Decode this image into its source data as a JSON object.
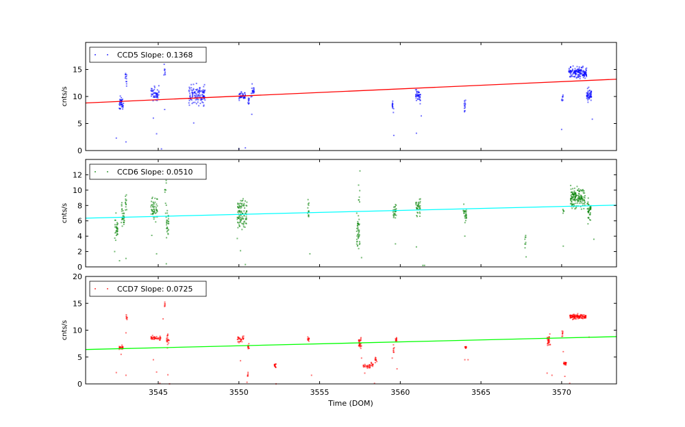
{
  "chart_data": [
    {
      "type": "scatter",
      "legend": "CCD5 Slope: 0.1368",
      "legend_placement": "top-left",
      "ylabel": "cnts/s",
      "xlabel": "",
      "xlim": [
        3540.5,
        3573.4
      ],
      "ylim": [
        0,
        20
      ],
      "yticks": [
        0,
        5,
        10,
        15
      ],
      "xticks": [
        3545,
        3550,
        3555,
        3560,
        3565,
        3570
      ],
      "point_color": "#0000ff",
      "fit_color": "#ff0000",
      "fit_line": {
        "slope": 0.1368,
        "y_at_xmin": 8.8,
        "y_at_xmax": 13.2
      },
      "clusters": [
        [
          3542.7,
          0.15,
          8.7,
          0.6,
          40
        ],
        [
          3543.0,
          0.05,
          13.0,
          0.7,
          12
        ],
        [
          3544.8,
          0.25,
          10.6,
          0.6,
          50
        ],
        [
          3545.4,
          0.05,
          14.5,
          1.0,
          8
        ],
        [
          3547.4,
          0.5,
          10.3,
          0.9,
          120
        ],
        [
          3550.2,
          0.2,
          10.2,
          0.4,
          40
        ],
        [
          3550.6,
          0.05,
          9.0,
          0.5,
          10
        ],
        [
          3550.85,
          0.1,
          11.0,
          0.5,
          20
        ],
        [
          3559.55,
          0.05,
          8.3,
          0.5,
          12
        ],
        [
          3561.1,
          0.15,
          10.2,
          0.6,
          40
        ],
        [
          3564.0,
          0.05,
          8.2,
          0.6,
          14
        ],
        [
          3570.05,
          0.05,
          9.5,
          0.5,
          8
        ],
        [
          3571.0,
          0.55,
          14.4,
          0.5,
          150
        ],
        [
          3571.7,
          0.15,
          10.2,
          0.6,
          50
        ]
      ],
      "outliers": [
        [
          3542.4,
          2.3
        ],
        [
          3543.0,
          1.6
        ],
        [
          3544.7,
          6.0
        ],
        [
          3544.9,
          3.1
        ],
        [
          3545.2,
          0.3
        ],
        [
          3545.4,
          7.6
        ],
        [
          3547.2,
          5.1
        ],
        [
          3550.0,
          0.3
        ],
        [
          3550.4,
          0.5
        ],
        [
          3550.8,
          6.7
        ],
        [
          3559.6,
          2.8
        ],
        [
          3561.0,
          3.2
        ],
        [
          3561.3,
          6.4
        ],
        [
          3570.0,
          3.9
        ],
        [
          3571.9,
          5.8
        ]
      ]
    },
    {
      "type": "scatter",
      "legend": "CCD6 Slope: 0.0510",
      "legend_placement": "top-left",
      "ylabel": "cnts/s",
      "xlabel": "",
      "xlim": [
        3540.5,
        3573.4
      ],
      "ylim": [
        0,
        14
      ],
      "yticks": [
        0,
        2,
        4,
        6,
        8,
        10,
        12
      ],
      "xticks": [
        3545,
        3550,
        3555,
        3560,
        3565,
        3570
      ],
      "point_color": "#008000",
      "fit_color": "#00ffff",
      "fit_line": {
        "slope": 0.051,
        "y_at_xmin": 6.35,
        "y_at_xmax": 8.05
      },
      "clusters": [
        [
          3542.4,
          0.1,
          5.0,
          0.8,
          30
        ],
        [
          3542.8,
          0.1,
          6.8,
          0.8,
          30
        ],
        [
          3543.0,
          0.05,
          8.5,
          0.6,
          12
        ],
        [
          3544.75,
          0.2,
          7.5,
          0.7,
          50
        ],
        [
          3545.45,
          0.05,
          10.5,
          0.6,
          8
        ],
        [
          3545.55,
          0.1,
          5.8,
          1.0,
          30
        ],
        [
          3550.2,
          0.3,
          7.0,
          0.9,
          100
        ],
        [
          3554.3,
          0.05,
          7.4,
          0.6,
          15
        ],
        [
          3557.4,
          0.1,
          4.8,
          1.2,
          40
        ],
        [
          3557.45,
          0.05,
          9.5,
          0.8,
          6
        ],
        [
          3559.65,
          0.1,
          7.1,
          0.6,
          25
        ],
        [
          3561.1,
          0.15,
          7.8,
          0.7,
          35
        ],
        [
          3564.0,
          0.1,
          7.0,
          0.6,
          25
        ],
        [
          3567.75,
          0.03,
          3.3,
          0.6,
          8
        ],
        [
          3570.1,
          0.05,
          7.5,
          0.4,
          5
        ],
        [
          3571.0,
          0.45,
          9.0,
          0.7,
          150
        ],
        [
          3571.7,
          0.12,
          7.2,
          0.6,
          40
        ]
      ],
      "outliers": [
        [
          3542.3,
          2.0
        ],
        [
          3542.6,
          0.8
        ],
        [
          3543.0,
          1.1
        ],
        [
          3544.6,
          4.1
        ],
        [
          3544.9,
          1.7
        ],
        [
          3545.5,
          0.4
        ],
        [
          3549.9,
          3.7
        ],
        [
          3550.1,
          2.1
        ],
        [
          3550.4,
          0.3
        ],
        [
          3554.4,
          1.7
        ],
        [
          3557.6,
          1.2
        ],
        [
          3557.5,
          12.5
        ],
        [
          3559.7,
          3.0
        ],
        [
          3561.0,
          2.6
        ],
        [
          3561.4,
          0.2
        ],
        [
          3561.5,
          0.2
        ],
        [
          3564.0,
          4.0
        ],
        [
          3567.8,
          1.3
        ],
        [
          3570.1,
          2.7
        ],
        [
          3572.0,
          3.6
        ]
      ]
    },
    {
      "type": "scatter",
      "legend": "CCD7 Slope: 0.0725",
      "legend_placement": "top-left",
      "ylabel": "cnts/s",
      "xlabel": "Time (DOM)",
      "xlim": [
        3540.5,
        3573.4
      ],
      "ylim": [
        0,
        20
      ],
      "yticks": [
        0,
        5,
        10,
        15,
        20
      ],
      "xticks": [
        3545,
        3550,
        3555,
        3560,
        3565,
        3570
      ],
      "point_color": "#ff0000",
      "fit_color": "#00ff00",
      "fit_line": {
        "slope": 0.0725,
        "y_at_xmin": 6.4,
        "y_at_xmax": 8.8
      },
      "clusters": [
        [
          3542.7,
          0.12,
          6.8,
          0.15,
          25
        ],
        [
          3543.05,
          0.03,
          12.4,
          0.3,
          8
        ],
        [
          3544.85,
          0.3,
          8.5,
          0.2,
          40
        ],
        [
          3545.6,
          0.08,
          8.2,
          0.6,
          20
        ],
        [
          3545.4,
          0.03,
          14.6,
          0.3,
          6
        ],
        [
          3550.1,
          0.2,
          8.4,
          0.3,
          30
        ],
        [
          3550.6,
          0.05,
          7.0,
          0.2,
          12
        ],
        [
          3550.55,
          0.02,
          1.8,
          0.2,
          6
        ],
        [
          3552.25,
          0.05,
          3.4,
          0.2,
          15
        ],
        [
          3554.3,
          0.05,
          8.4,
          0.2,
          12
        ],
        [
          3557.5,
          0.1,
          7.8,
          0.5,
          30
        ],
        [
          3557.95,
          0.25,
          3.3,
          0.2,
          25
        ],
        [
          3558.25,
          0.06,
          3.6,
          0.2,
          10
        ],
        [
          3558.5,
          0.06,
          4.5,
          0.3,
          12
        ],
        [
          3559.6,
          0.03,
          6.5,
          0.4,
          8
        ],
        [
          3559.75,
          0.05,
          8.2,
          0.2,
          12
        ],
        [
          3564.05,
          0.05,
          6.8,
          0.15,
          12
        ],
        [
          3569.2,
          0.1,
          7.8,
          0.6,
          30
        ],
        [
          3570.05,
          0.03,
          9.3,
          0.3,
          8
        ],
        [
          3570.2,
          0.08,
          3.8,
          0.2,
          20
        ],
        [
          3571.0,
          0.5,
          12.5,
          0.2,
          120
        ]
      ],
      "outliers": [
        [
          3542.4,
          2.1
        ],
        [
          3542.7,
          5.5
        ],
        [
          3543.0,
          1.6
        ],
        [
          3543.0,
          9.5
        ],
        [
          3544.7,
          4.5
        ],
        [
          3544.9,
          2.2
        ],
        [
          3545.1,
          0.1
        ],
        [
          3545.3,
          12.1
        ],
        [
          3545.6,
          1.7
        ],
        [
          3545.7,
          0.0
        ],
        [
          3550.1,
          4.3
        ],
        [
          3550.5,
          0.3
        ],
        [
          3552.3,
          0.0
        ],
        [
          3554.5,
          1.6
        ],
        [
          3557.6,
          4.8
        ],
        [
          3557.8,
          2.0
        ],
        [
          3558.4,
          0.1
        ],
        [
          3559.5,
          4.8
        ],
        [
          3559.8,
          2.8
        ],
        [
          3564.0,
          4.5
        ],
        [
          3564.2,
          4.5
        ],
        [
          3569.1,
          2.0
        ],
        [
          3569.4,
          1.6
        ],
        [
          3570.1,
          6.0
        ],
        [
          3570.2,
          1.4
        ],
        [
          3570.5,
          0.1
        ],
        [
          3571.7,
          8.7
        ]
      ]
    }
  ]
}
